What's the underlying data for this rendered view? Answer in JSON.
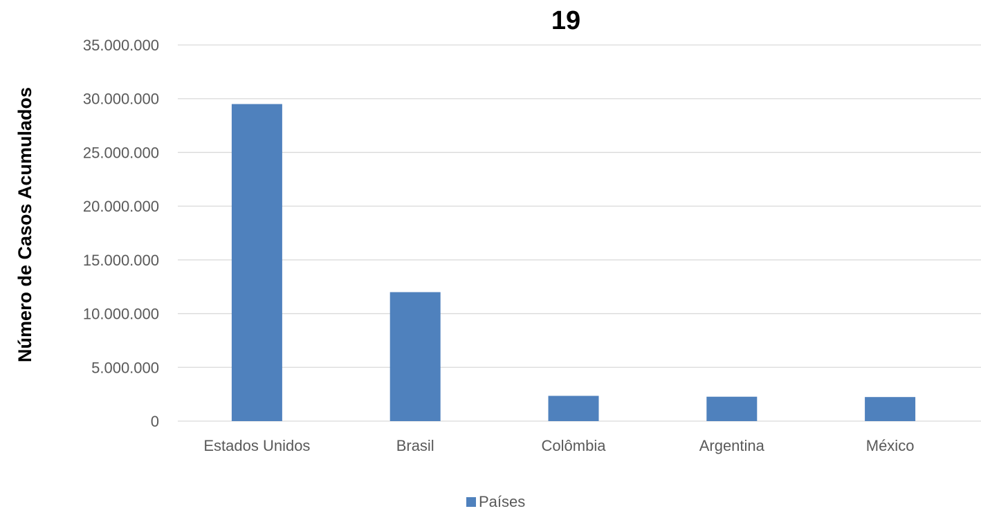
{
  "chart_data": {
    "type": "bar",
    "title": "19",
    "xlabel": "",
    "ylabel": "Número de Casos Acumulados",
    "categories": [
      "Estados Unidos",
      "Brasil",
      "Colômbia",
      "Argentina",
      "México"
    ],
    "series": [
      {
        "name": "Países",
        "values": [
          29500000,
          12000000,
          2350000,
          2270000,
          2240000
        ],
        "color": "#4f81bd"
      }
    ],
    "ylim": [
      0,
      35000000
    ],
    "yticks": [
      0,
      5000000,
      10000000,
      15000000,
      20000000,
      25000000,
      30000000,
      35000000
    ],
    "ytick_labels": [
      "0",
      "5.000.000",
      "10.000.000",
      "15.000.000",
      "20.000.000",
      "25.000.000",
      "30.000.000",
      "35.000.000"
    ],
    "grid": true,
    "legend_position": "bottom"
  }
}
